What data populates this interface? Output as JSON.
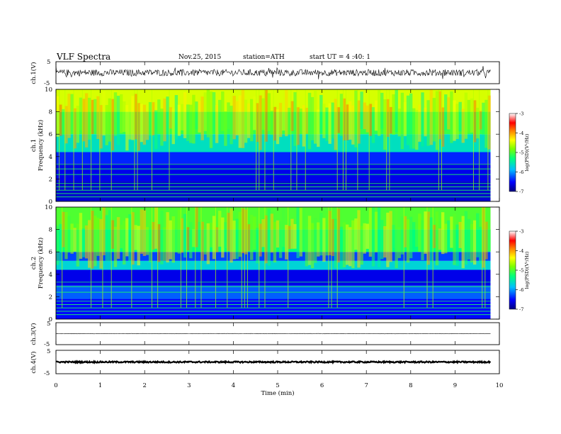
{
  "header": {
    "title": "VLF  Spectra",
    "date": "Nov.25, 2015",
    "station": "station=ATH",
    "start": "start  UT  =   4 :40: 1"
  },
  "chart_data": [
    {
      "type": "line",
      "name": "ch1-waveform",
      "ylabel": "ch.1(V)",
      "ylim": [
        -5,
        5
      ],
      "yticks": [
        "5",
        "-5"
      ],
      "xlim": [
        0,
        10
      ],
      "description_values": {
        "baseline": 0,
        "amplitude_typ": 1.5,
        "data_end_min": 9.8
      }
    },
    {
      "type": "heatmap",
      "name": "ch1-spectrogram",
      "ylabel_lines": [
        "ch.1",
        "Frequency  (kHz)"
      ],
      "ylim": [
        0,
        10
      ],
      "yticks": [
        "0",
        "2",
        "4",
        "6",
        "8",
        "10"
      ],
      "xlim": [
        0,
        10
      ],
      "data_end_min": 9.8,
      "colorbar": {
        "label": "log(PSD)(V²/Hz)",
        "range": [
          -7,
          -3
        ],
        "ticks": [
          "-3",
          "-4",
          "-5",
          "-6",
          "-7"
        ]
      },
      "bands_khz_logpsd": [
        {
          "from": 0,
          "to": 1.8,
          "value": -6.7
        },
        {
          "from": 1.8,
          "to": 3.4,
          "value": -6.6
        },
        {
          "from": 3.4,
          "to": 4.4,
          "value": -6.4
        },
        {
          "from": 4.4,
          "to": 6.0,
          "value": -5.6
        },
        {
          "from": 6.0,
          "to": 8.0,
          "value": -5.1
        },
        {
          "from": 8.0,
          "to": 10.0,
          "value": -4.5
        }
      ]
    },
    {
      "type": "heatmap",
      "name": "ch2-spectrogram",
      "ylabel_lines": [
        "ch.2",
        "Frequency  (kHz)"
      ],
      "ylim": [
        0,
        10
      ],
      "yticks": [
        "0",
        "2",
        "4",
        "6",
        "8",
        "10"
      ],
      "xlim": [
        0,
        10
      ],
      "data_end_min": 9.8,
      "colorbar": {
        "label": "log(PSD)(V²/Hz)",
        "range": [
          -7,
          -3
        ],
        "ticks": [
          "-3",
          "-4",
          "-5",
          "-6",
          "-7"
        ]
      },
      "bands_khz_logpsd": [
        {
          "from": 0,
          "to": 1.8,
          "value": -6.5
        },
        {
          "from": 1.8,
          "to": 3.0,
          "value": -6.2
        },
        {
          "from": 3.0,
          "to": 4.4,
          "value": -6.6
        },
        {
          "from": 4.4,
          "to": 5.2,
          "value": -5.7
        },
        {
          "from": 5.2,
          "to": 6.0,
          "value": -6.3
        },
        {
          "from": 6.0,
          "to": 8.0,
          "value": -5.3
        },
        {
          "from": 8.0,
          "to": 10.0,
          "value": -5.0
        }
      ]
    },
    {
      "type": "line",
      "name": "ch3-waveform",
      "ylabel": "ch.3(V)",
      "ylim": [
        -5,
        5
      ],
      "yticks": [
        "5",
        "-5"
      ],
      "xlim": [
        0,
        10
      ],
      "description_values": {
        "baseline": 0,
        "amplitude_typ": 0.1,
        "data_end_min": 9.8
      }
    },
    {
      "type": "line",
      "name": "ch4-waveform",
      "ylabel": "ch.4(V)",
      "ylim": [
        -5,
        5
      ],
      "yticks": [
        "5",
        "-5"
      ],
      "xlim": [
        0,
        10
      ],
      "description_values": {
        "baseline": 0,
        "amplitude_typ": 0.3,
        "data_end_min": 9.8
      }
    }
  ],
  "xaxis": {
    "label": "Time  (min)",
    "ticks": [
      "0",
      "1",
      "2",
      "3",
      "4",
      "5",
      "6",
      "7",
      "8",
      "9",
      "10"
    ]
  },
  "colors": {
    "colormap": [
      "#00007f",
      "#0000ff",
      "#00bfff",
      "#00ff7f",
      "#7fff00",
      "#ffff00",
      "#ff7f00",
      "#ff0000",
      "#ffffff"
    ]
  }
}
